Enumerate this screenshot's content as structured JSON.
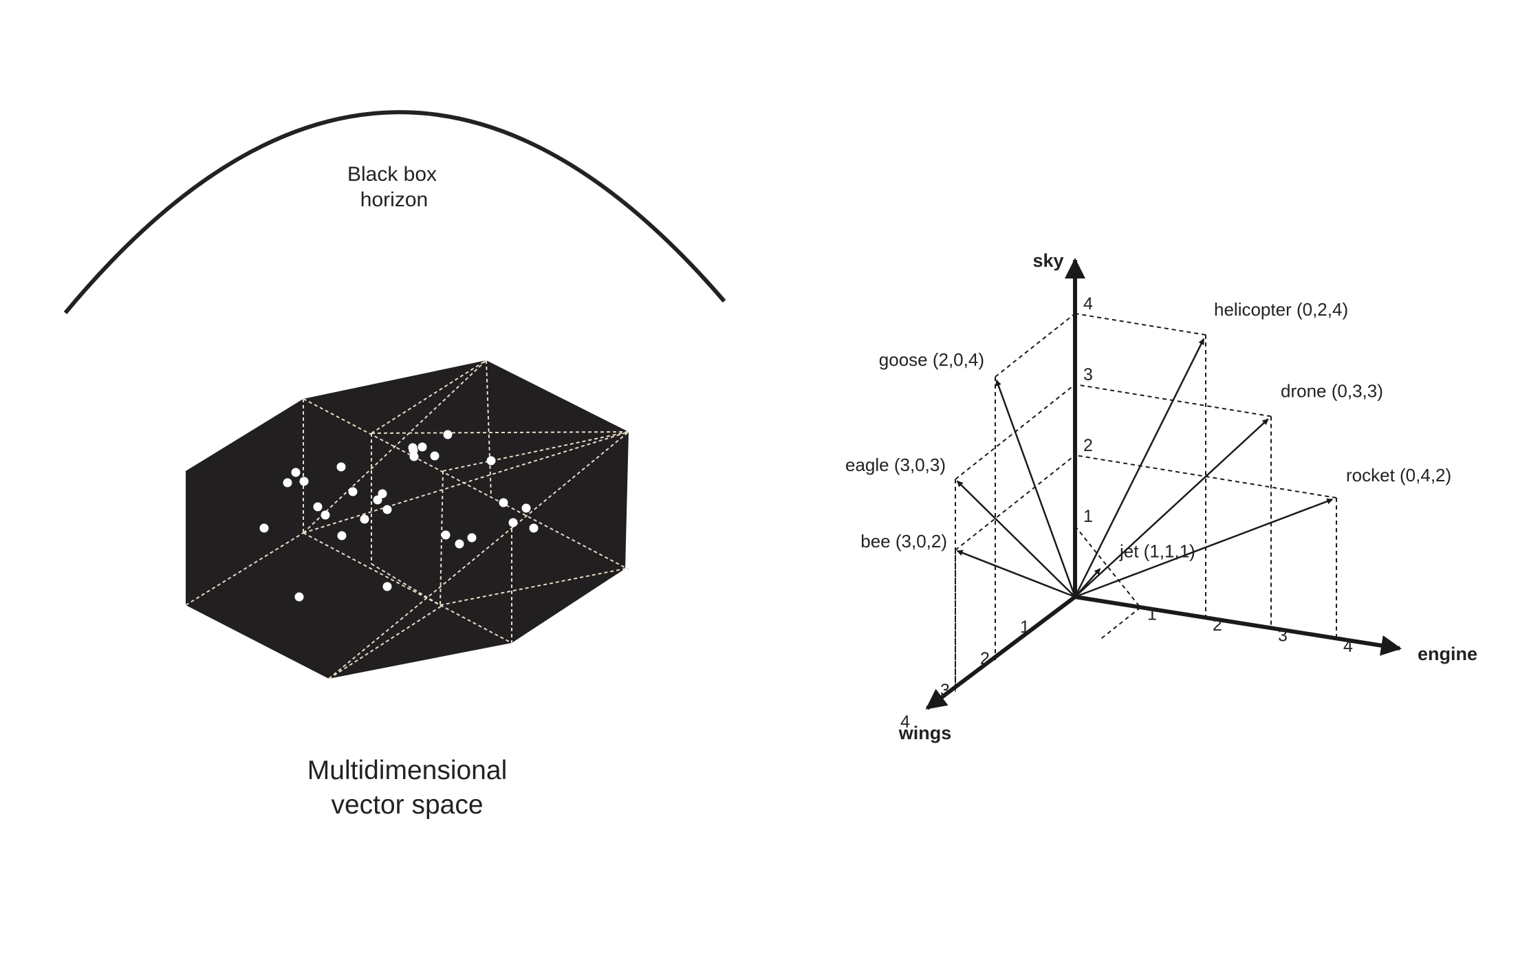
{
  "left_panel": {
    "horizon_label_line1": "Black box",
    "horizon_label_line2": "horizon",
    "caption_line1": "Multidimensional",
    "caption_line2": "vector space",
    "polygon_fill": "#221f20",
    "dot_color": "#ffffff",
    "dot_count": 29
  },
  "right_panel": {
    "axes": {
      "sky": "sky",
      "engine": "engine",
      "wings": "wings"
    },
    "tick_labels": [
      "1",
      "2",
      "3",
      "4"
    ],
    "vectors": [
      {
        "name": "helicopter",
        "label": "helicopter (0,2,4)",
        "wings": 0,
        "engine": 2,
        "sky": 4
      },
      {
        "name": "drone",
        "label": "drone (0,3,3)",
        "wings": 0,
        "engine": 3,
        "sky": 3
      },
      {
        "name": "rocket",
        "label": "rocket (0,4,2)",
        "wings": 0,
        "engine": 4,
        "sky": 2
      },
      {
        "name": "goose",
        "label": "goose (2,0,4)",
        "wings": 2,
        "engine": 0,
        "sky": 4
      },
      {
        "name": "eagle",
        "label": "eagle (3,0,3)",
        "wings": 3,
        "engine": 0,
        "sky": 3
      },
      {
        "name": "bee",
        "label": "bee (3,0,2)",
        "wings": 3,
        "engine": 0,
        "sky": 2
      },
      {
        "name": "jet",
        "label": "jet (1,1,1)",
        "wings": 1,
        "engine": 1,
        "sky": 1
      }
    ],
    "line_color": "#1a1a1a"
  }
}
